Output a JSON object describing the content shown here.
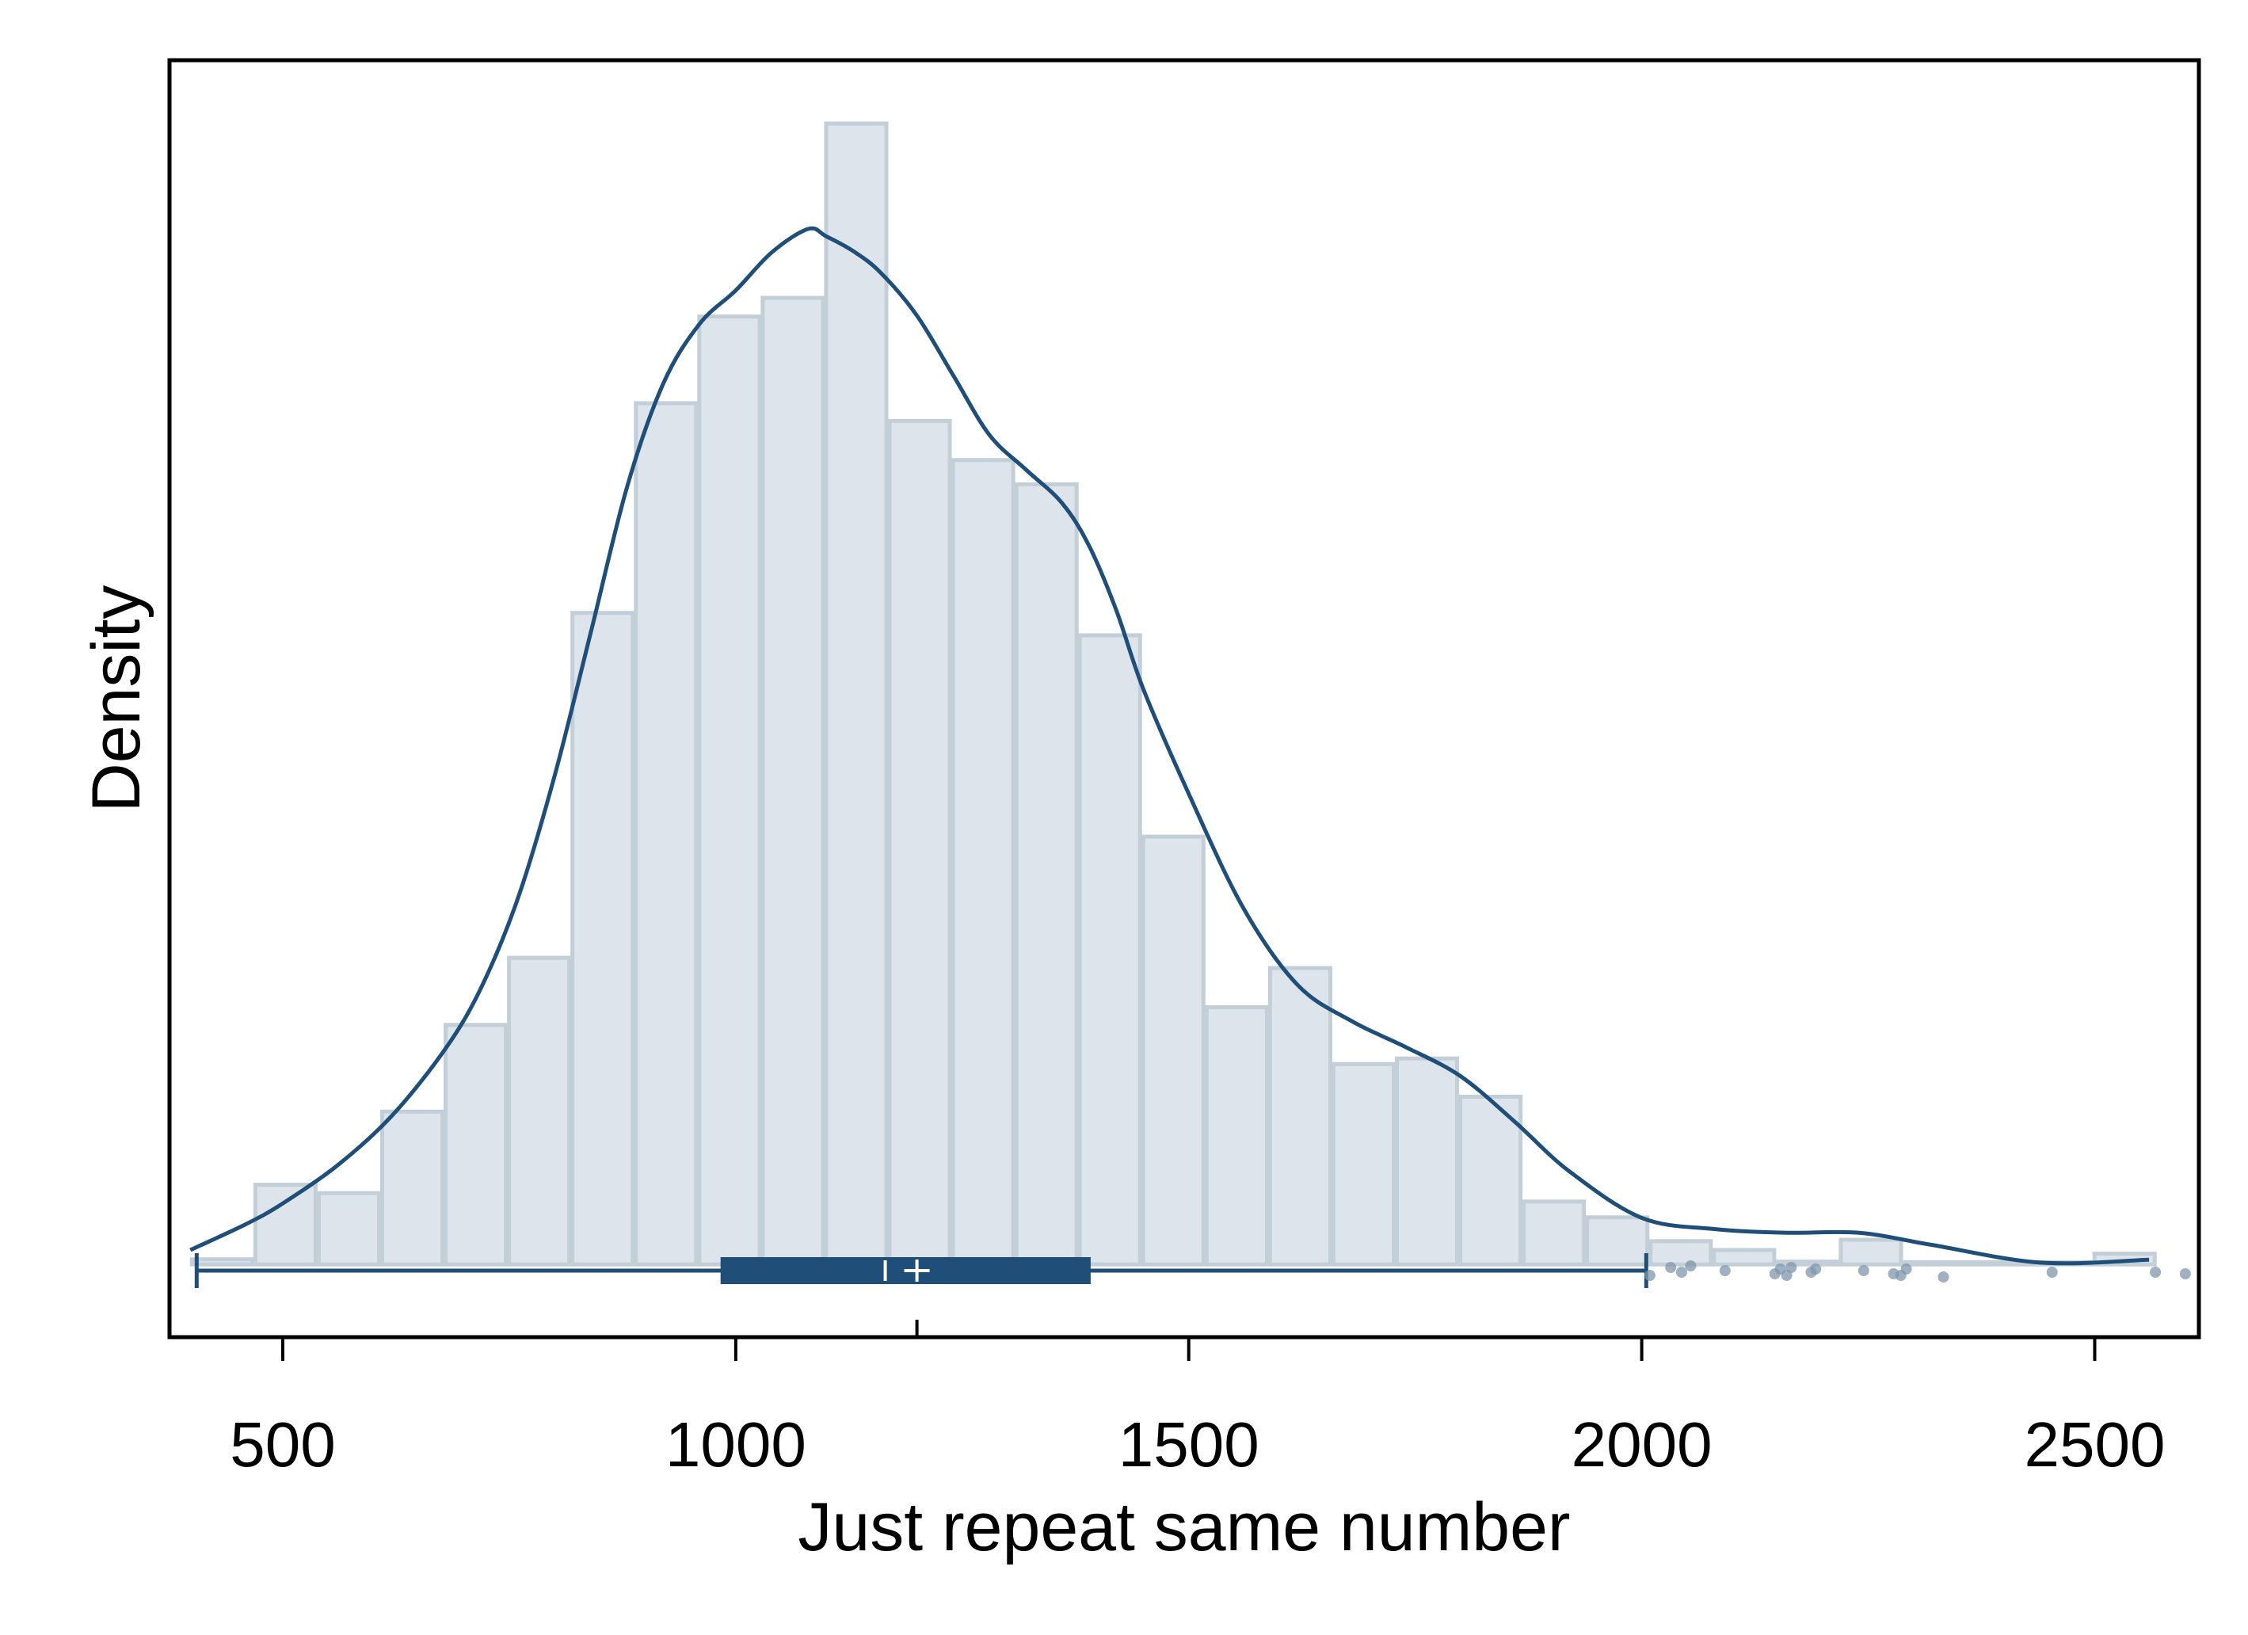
{
  "chart_data": {
    "type": "histogram",
    "xlabel": "Just repeat same number",
    "ylabel": "Density",
    "xlim": [
      375,
      2615
    ],
    "ylim": [
      -7.8e-05,
      0.001292
    ],
    "x_ticks": [
      500,
      1000,
      1500,
      2000,
      2500
    ],
    "grid": false,
    "legend": "none",
    "histogram": {
      "bins": [
        {
          "x0": 398,
          "x1": 468,
          "density": 5.5e-06
        },
        {
          "x0": 468,
          "x1": 538,
          "density": 8.55e-05
        },
        {
          "x0": 538,
          "x1": 608,
          "density": 7.65e-05
        },
        {
          "x0": 608,
          "x1": 678,
          "density": 0.000164
        },
        {
          "x0": 678,
          "x1": 748,
          "density": 0.000257
        },
        {
          "x0": 748,
          "x1": 818,
          "density": 0.000329
        },
        {
          "x0": 818,
          "x1": 888,
          "density": 0.000699
        },
        {
          "x0": 888,
          "x1": 958,
          "density": 0.000924
        },
        {
          "x0": 958,
          "x1": 1028,
          "density": 0.001017
        },
        {
          "x0": 1028,
          "x1": 1098,
          "density": 0.001037
        },
        {
          "x0": 1098,
          "x1": 1168,
          "density": 0.001224
        },
        {
          "x0": 1168,
          "x1": 1238,
          "density": 0.000905
        },
        {
          "x0": 1238,
          "x1": 1308,
          "density": 0.000863
        },
        {
          "x0": 1308,
          "x1": 1378,
          "density": 0.000837
        },
        {
          "x0": 1378,
          "x1": 1448,
          "density": 0.000675
        },
        {
          "x0": 1448,
          "x1": 1518,
          "density": 0.000459
        },
        {
          "x0": 1518,
          "x1": 1588,
          "density": 0.000276
        },
        {
          "x0": 1588,
          "x1": 1658,
          "density": 0.000318
        },
        {
          "x0": 1658,
          "x1": 1728,
          "density": 0.000215
        },
        {
          "x0": 1728,
          "x1": 1798,
          "density": 0.000221
        },
        {
          "x0": 1798,
          "x1": 1868,
          "density": 0.00018
        },
        {
          "x0": 1868,
          "x1": 1938,
          "density": 6.75e-05
        },
        {
          "x0": 1938,
          "x1": 2008,
          "density": 5.05e-05
        },
        {
          "x0": 2008,
          "x1": 2078,
          "density": 2.5e-05
        },
        {
          "x0": 2078,
          "x1": 2148,
          "density": 1.55e-05
        },
        {
          "x0": 2148,
          "x1": 2218,
          "density": 3e-06
        },
        {
          "x0": 2218,
          "x1": 2288,
          "density": 2.65e-05
        },
        {
          "x0": 2288,
          "x1": 2358,
          "density": 2.5e-06
        },
        {
          "x0": 2358,
          "x1": 2428,
          "density": 2.5e-06
        },
        {
          "x0": 2428,
          "x1": 2498,
          "density": 2.5e-06
        },
        {
          "x0": 2498,
          "x1": 2568,
          "density": 1.15e-05
        }
      ]
    },
    "kde": {
      "x": [
        398,
        460,
        500,
        560,
        620,
        680,
        720,
        760,
        800,
        840,
        880,
        920,
        960,
        1000,
        1040,
        1080,
        1100,
        1130,
        1160,
        1200,
        1240,
        1280,
        1320,
        1360,
        1390,
        1420,
        1450,
        1500,
        1560,
        1620,
        1680,
        1740,
        1800,
        1860,
        1920,
        2000,
        2080,
        2160,
        2240,
        2320,
        2440,
        2560
      ],
      "y": [
        1.55e-05,
        4.35e-05,
        6.55e-05,
        0.000106,
        0.000159,
        0.000232,
        0.000299,
        0.000394,
        0.000524,
        0.000678,
        0.000834,
        0.000945,
        0.001009,
        0.001045,
        0.001086,
        0.001111,
        0.001103,
        0.001087,
        0.001064,
        0.001018,
        0.000954,
        0.00089,
        0.000853,
        0.000817,
        0.000771,
        0.000702,
        0.000617,
        0.000505,
        0.000383,
        0.0003,
        0.000261,
        0.000233,
        0.000202,
        0.000153,
        0.0001,
        5e-05,
        3.8e-05,
        3.4e-05,
        3.4e-05,
        2.1e-05,
        2e-06,
        5e-06
      ],
      "color": "#1f4e79"
    },
    "boxplot": {
      "whisker_low": 405,
      "q1": 985,
      "median": 1165,
      "mean": 1200,
      "q3": 1390,
      "whisker_high": 2005,
      "outliers": [
        2009,
        2032,
        2044,
        2054,
        2092,
        2147,
        2153,
        2160,
        2165,
        2187,
        2192,
        2245,
        2278,
        2286,
        2292,
        2333,
        2453,
        2567,
        2600
      ],
      "color": "#1f4e79"
    },
    "colors": {
      "bar_fill": "#dde4eb",
      "bar_stroke": "#c2ced8",
      "line": "#1f4e79",
      "outlier": "#7f95ab"
    }
  }
}
